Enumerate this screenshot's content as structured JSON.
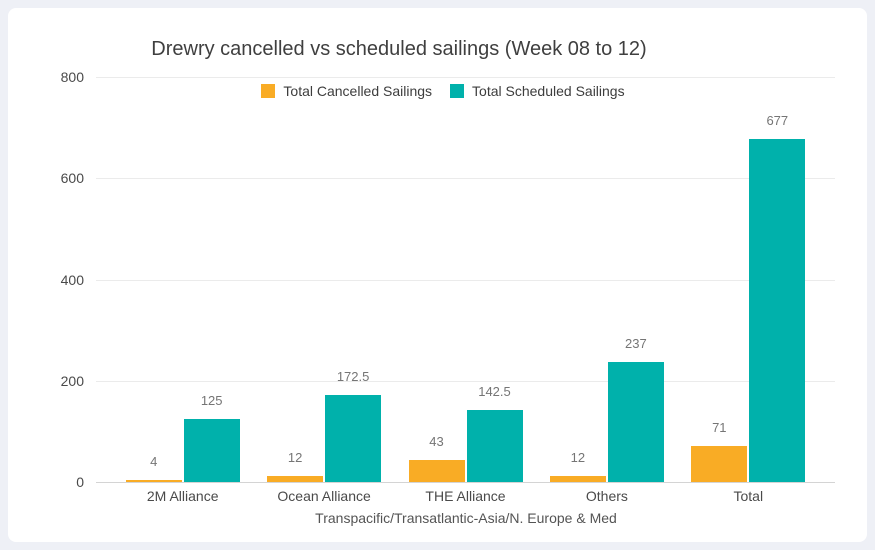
{
  "page": {
    "background_color": "#EEF0F6",
    "card_color": "#FFFFFF"
  },
  "chart_data": {
    "type": "bar",
    "title": "Drewry cancelled vs scheduled sailings (Week 08 to 12)",
    "xlabel": "Transpacific/Transatlantic-Asia/N. Europe & Med",
    "ylabel": "",
    "categories": [
      "2M Alliance",
      "Ocean Alliance",
      "THE Alliance",
      "Others",
      "Total"
    ],
    "series": [
      {
        "name": "Total Cancelled Sailings",
        "color": "#F9AC25",
        "values": [
          4,
          12,
          43,
          12,
          71
        ]
      },
      {
        "name": "Total Scheduled Sailings",
        "color": "#00B1AB",
        "values": [
          125,
          172.5,
          142.5,
          237,
          677
        ]
      }
    ],
    "y_ticks": [
      0,
      200,
      400,
      600,
      800
    ],
    "ylim": [
      0,
      800
    ],
    "grid": true,
    "legend_position": "top-center",
    "value_labels": true,
    "colors": {
      "gridline": "#EBEBEB",
      "baseline": "#D4D4D4",
      "title_text": "#3F3F3F",
      "tick_text": "#4A4A4A",
      "value_label_text": "#757575"
    }
  }
}
